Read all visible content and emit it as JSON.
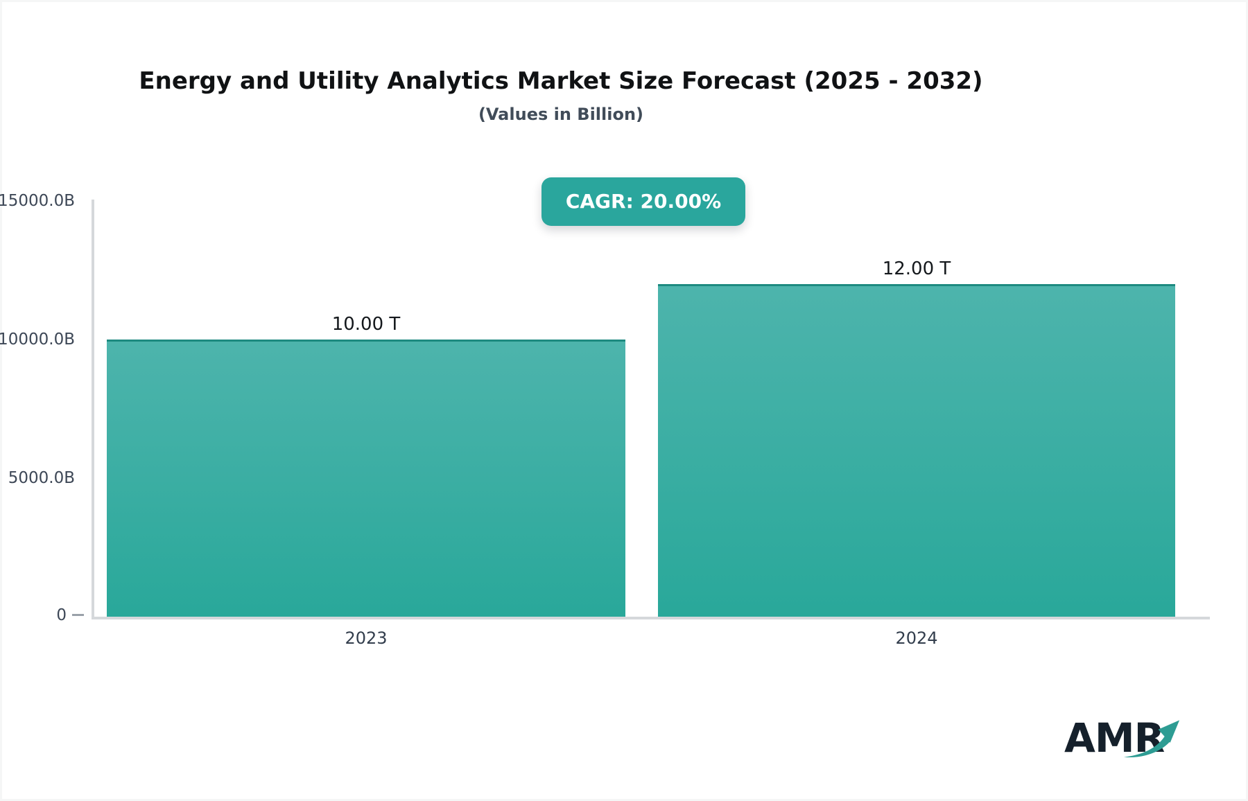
{
  "page": {
    "background_color": "#f5f6f6",
    "card_color": "#ffffff"
  },
  "header": {
    "title": "Energy and Utility Analytics Market Size Forecast (2025 - 2032)",
    "subtitle": "(Values in Billion)"
  },
  "badge": {
    "label": "CAGR: 20.00%",
    "background_color": "#2aa69d",
    "text_color": "#ffffff"
  },
  "chart_data": {
    "type": "bar",
    "title": "Energy and Utility Analytics Market Size Forecast (2025 - 2032)",
    "subtitle": "(Values in Billion)",
    "categories": [
      "2023",
      "2024"
    ],
    "values": [
      10000,
      12000
    ],
    "value_labels": [
      "10.00 T",
      "12.00 T"
    ],
    "unit": "Billion",
    "ylim": [
      0,
      15000
    ],
    "y_ticks": [
      {
        "label": "15000.0B",
        "value": 15000
      },
      {
        "label": "10000.0B",
        "value": 10000
      },
      {
        "label": "5000.0B",
        "value": 5000
      },
      {
        "label": "0",
        "value": 0
      }
    ],
    "grid": false,
    "legend": false,
    "bar_color_top": "#4db4ac",
    "bar_color_bottom": "#29a89a",
    "bar_top_border_color": "#1d8a80",
    "axis_color": "#d5d8db"
  },
  "logo": {
    "text": "AMR",
    "arrow_color": "#2d9c93"
  }
}
